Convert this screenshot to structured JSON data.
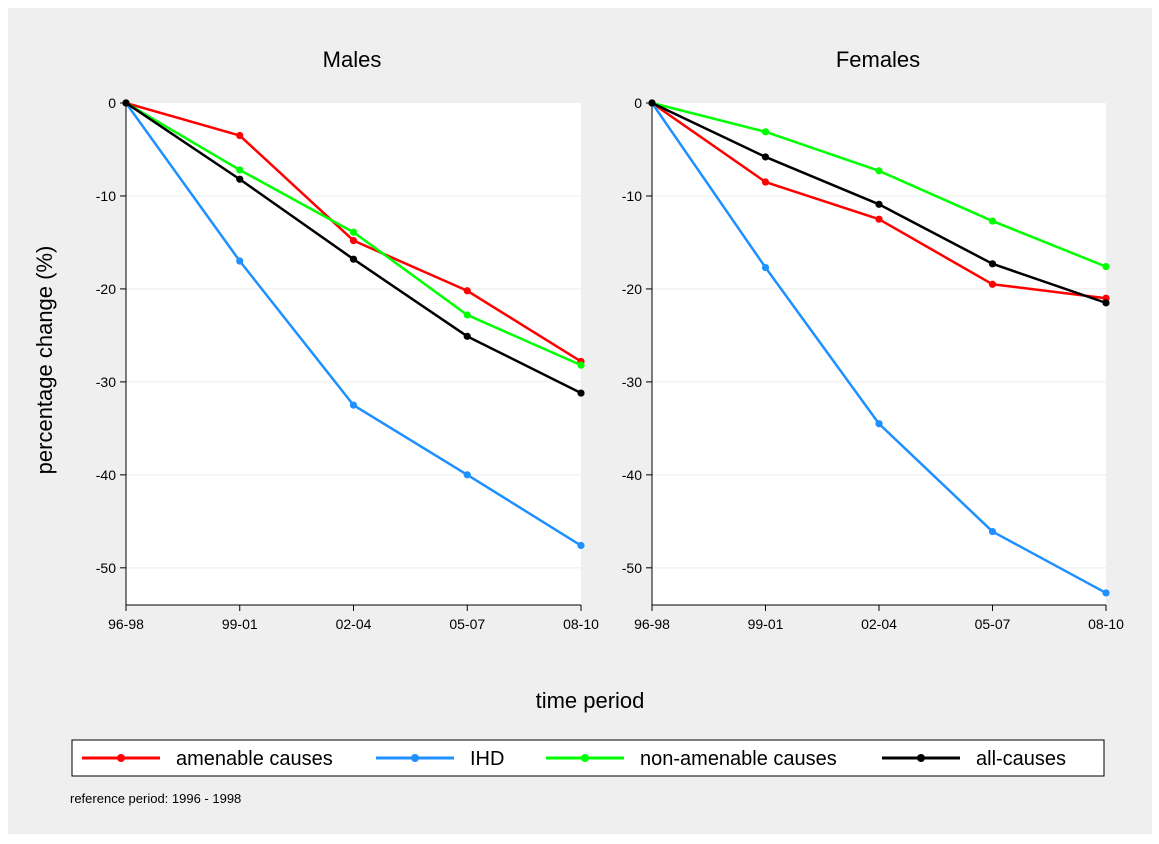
{
  "chart_data": {
    "type": "line",
    "categories": [
      "96-98",
      "99-01",
      "02-04",
      "05-07",
      "08-10"
    ],
    "ylabel": "percentage change (%)",
    "xlabel": "time period",
    "ylim": [
      -54,
      0
    ],
    "yticks": [
      0,
      -10,
      -20,
      -30,
      -40,
      -50
    ],
    "grid": true,
    "legend_position": "bottom",
    "note": "reference period: 1996 - 1998",
    "legend": [
      {
        "name": "amenable causes",
        "color": "#ff0000"
      },
      {
        "name": "IHD",
        "color": "#1e90ff"
      },
      {
        "name": "non-amenable causes",
        "color": "#00ff00"
      },
      {
        "name": "all-causes",
        "color": "#000000"
      }
    ],
    "panels": [
      {
        "title": "Males",
        "series": [
          {
            "name": "amenable causes",
            "color": "#ff0000",
            "values": [
              0,
              -3.5,
              -14.8,
              -20.2,
              -27.8
            ]
          },
          {
            "name": "IHD",
            "color": "#1e90ff",
            "values": [
              0,
              -17,
              -32.5,
              -40,
              -47.6
            ]
          },
          {
            "name": "non-amenable causes",
            "color": "#00ff00",
            "values": [
              0,
              -7.2,
              -13.9,
              -22.8,
              -28.2
            ]
          },
          {
            "name": "all-causes",
            "color": "#000000",
            "values": [
              0,
              -8.2,
              -16.8,
              -25.1,
              -31.2
            ]
          }
        ]
      },
      {
        "title": "Females",
        "series": [
          {
            "name": "amenable causes",
            "color": "#ff0000",
            "values": [
              0,
              -8.5,
              -12.5,
              -19.5,
              -21.0
            ]
          },
          {
            "name": "IHD",
            "color": "#1e90ff",
            "values": [
              0,
              -17.7,
              -34.5,
              -46.1,
              -52.7
            ]
          },
          {
            "name": "non-amenable causes",
            "color": "#00ff00",
            "values": [
              0,
              -3.1,
              -7.3,
              -12.7,
              -17.6
            ]
          },
          {
            "name": "all-causes",
            "color": "#000000",
            "values": [
              0,
              -5.8,
              -10.9,
              -17.3,
              -21.5
            ]
          }
        ]
      }
    ]
  }
}
